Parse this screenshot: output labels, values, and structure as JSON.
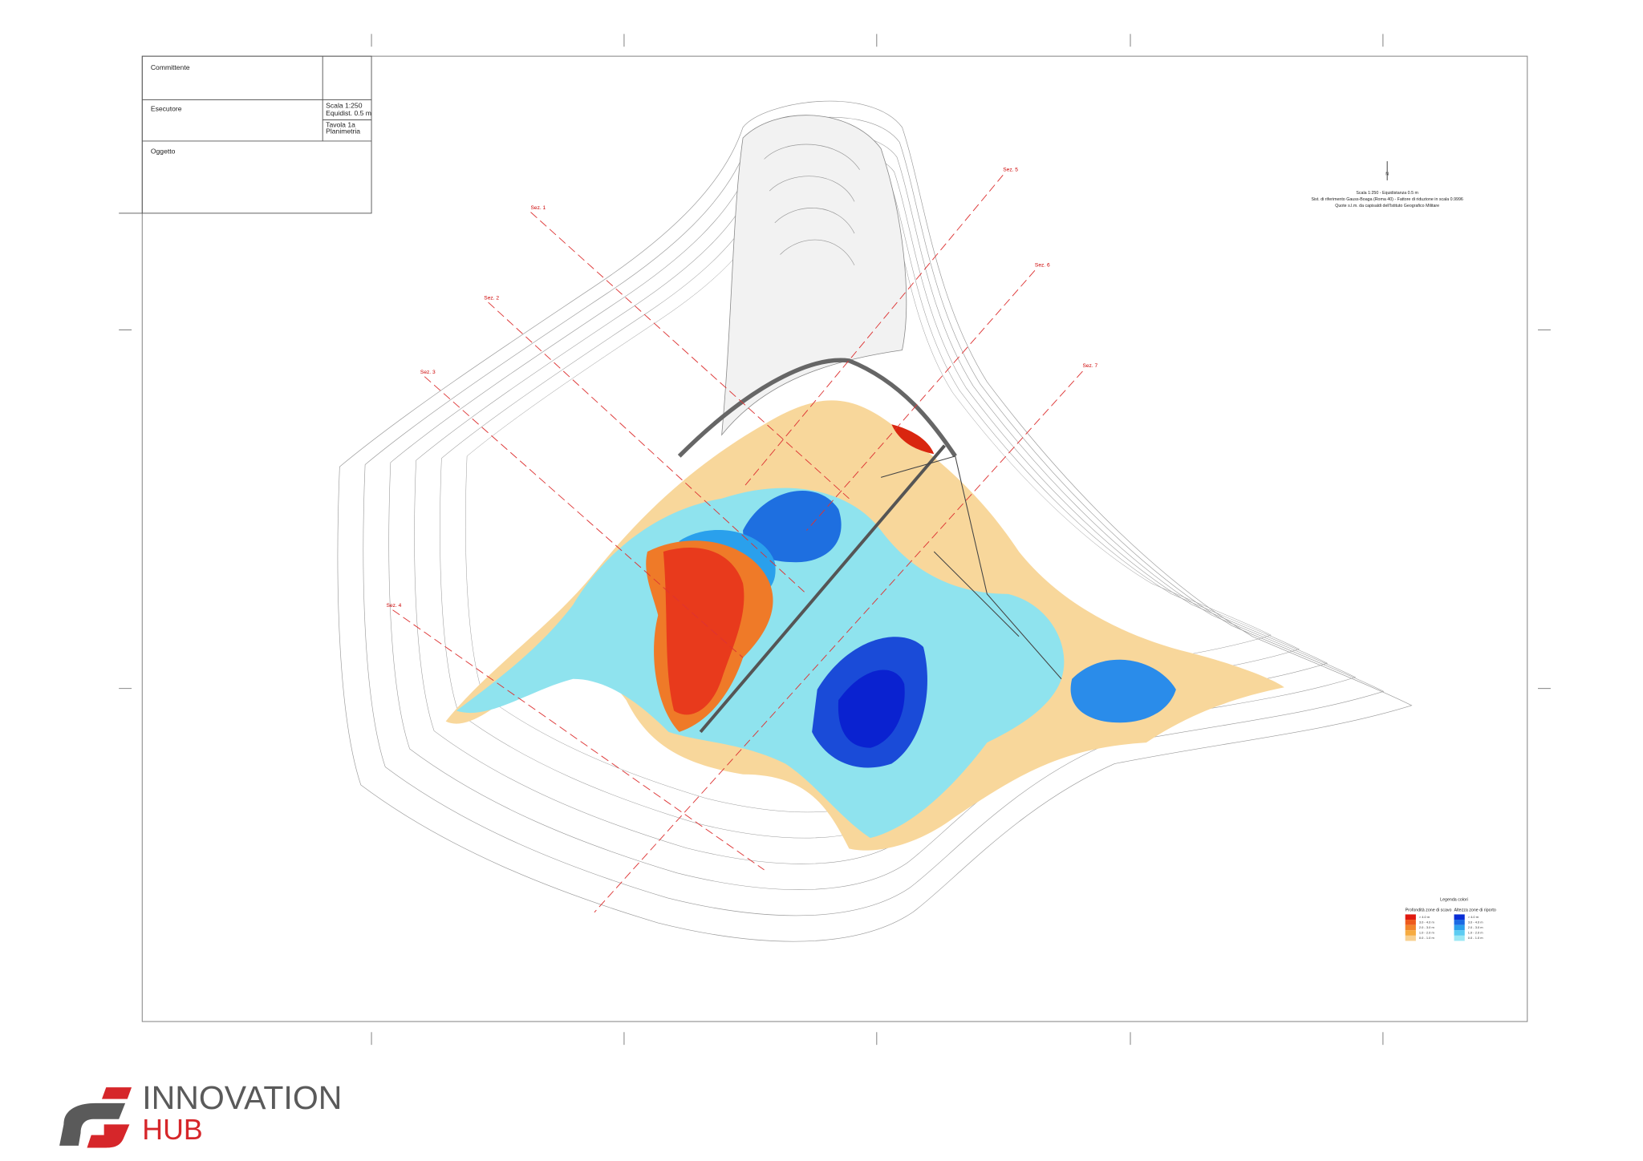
{
  "title_block": {
    "client_label": "Committente",
    "contractor_label": "Esecutore",
    "scale": "Scala 1:250",
    "contour_interval": "Equidist. 0.5 m",
    "sheet": "Tavola 1a",
    "sheet_title": "Planimetria",
    "subject_label": "Oggetto"
  },
  "notes": [
    "Scala 1:250 - Equidistanza 0.5 m",
    "Sist. di riferimento Gauss-Boaga (Roma 40) - Fattore di riduzione in scala 0.9996",
    "Quote s.l.m. da capisaldi dell'Istituto Geografico Militare"
  ],
  "north": "N",
  "sections": [
    "Sez. 1",
    "Sez. 2",
    "Sez. 3",
    "Sez. 4",
    "Sez. 5",
    "Sez. 6",
    "Sez. 7"
  ],
  "legend": {
    "title": "Legenda colori",
    "cut": {
      "title": "Profondità zone di scavo",
      "items": [
        "> 4.0 m",
        "3.0 - 4.0 m",
        "2.0 - 3.0 m",
        "1.0 - 2.0 m",
        "0.0 - 1.0 m"
      ]
    },
    "fill": {
      "title": "Altezza zone di riporto",
      "items": [
        "> 4.0 m",
        "3.0 - 4.0 m",
        "2.0 - 3.0 m",
        "1.0 - 2.0 m",
        "0.0 - 1.0 m"
      ]
    }
  },
  "logo": {
    "line1": "INNOVATION",
    "line2": "HUB"
  }
}
